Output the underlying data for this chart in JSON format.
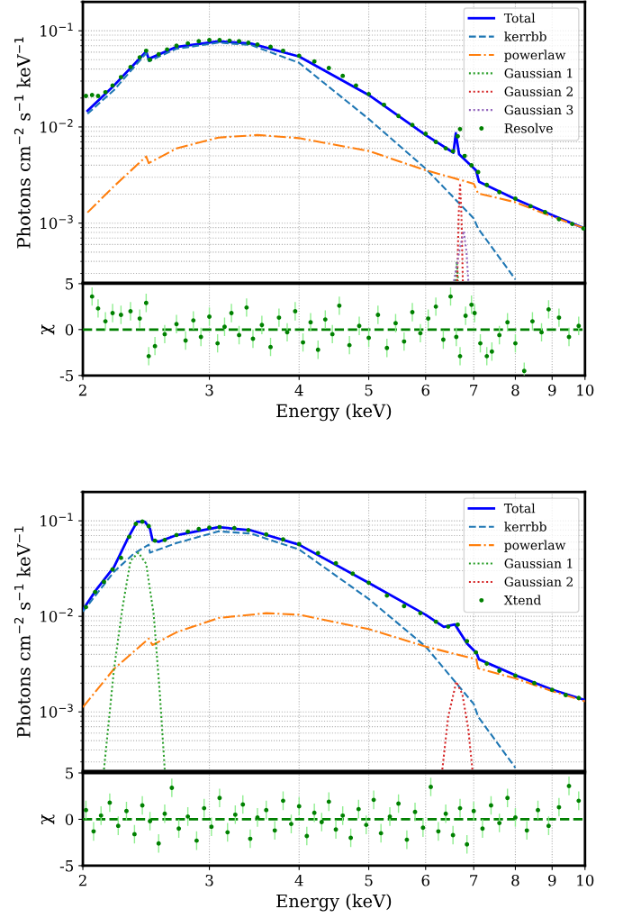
{
  "chart_data": [
    {
      "type": "line",
      "ylabel": "Photons cm$^{−2}$ s$^{−1}$ keV$^{−1}$",
      "log": "xy",
      "grid": true,
      "legend": "top right",
      "tick_labels": "y",
      "xlim": [
        2,
        10
      ],
      "ylim": [
        0.00024,
        0.2
      ],
      "yticks": [
        {
          "value": 0.001,
          "label": "10$^{−3}$"
        },
        {
          "value": 0.01,
          "label": "10$^{−2}$"
        },
        {
          "value": 0.1,
          "label": "10$^{−1}$"
        }
      ],
      "series": [
        {
          "name": "Total",
          "line_style": "solid",
          "color": "#0000ff",
          "x": [
            2.03,
            2.21,
            2.45,
            2.47,
            2.7,
            3.09,
            3.43,
            4,
            5,
            6,
            6.56,
            6.61,
            6.68,
            7.05,
            7.12,
            8,
            9,
            10
          ],
          "values": [
            0.0147,
            0.027,
            0.0607,
            0.051,
            0.068,
            0.0776,
            0.0735,
            0.054,
            0.0215,
            0.00825,
            0.0054,
            0.0086,
            0.0052,
            0.00355,
            0.0027,
            0.00178,
            0.00121,
            0.00088
          ]
        },
        {
          "name": "kerrbb",
          "line_style": "dashed",
          "color": "#1f77b4",
          "x": [
            2.03,
            2.21,
            2.45,
            2.47,
            2.7,
            3.09,
            3.43,
            4,
            5,
            6,
            7,
            7.1,
            8
          ],
          "values": [
            0.0137,
            0.0242,
            0.0585,
            0.0482,
            0.065,
            0.0753,
            0.071,
            0.0464,
            0.0121,
            0.00369,
            0.00112,
            0.00088,
            0.00026
          ]
        },
        {
          "name": "powerlaw",
          "line_style": "dashdot",
          "color": "#ff7f0e",
          "x": [
            2.03,
            2.21,
            2.45,
            2.47,
            2.7,
            3.09,
            3.5,
            4,
            5,
            6,
            7,
            7.1,
            8,
            9,
            10
          ],
          "values": [
            0.00129,
            0.00242,
            0.00493,
            0.0042,
            0.00598,
            0.00776,
            0.00825,
            0.00765,
            0.00562,
            0.00355,
            0.00257,
            0.00204,
            0.00165,
            0.00117,
            0.00088
          ]
        },
        {
          "name": "Gaussian 1",
          "line_style": "dotted",
          "color": "#2ca02c",
          "x": [
            6.6,
            6.63,
            6.66
          ],
          "values": [
            0.00025,
            0.0004,
            0.00025
          ]
        },
        {
          "name": "Gaussian 2",
          "line_style": "dotted",
          "color": "#d62728",
          "x": [
            6.64,
            6.67,
            6.7,
            6.73,
            6.76
          ],
          "values": [
            0.00025,
            0.0012,
            0.0026,
            0.0012,
            0.00025
          ]
        },
        {
          "name": "Gaussian 3",
          "line_style": "dotted",
          "color": "#9467bd",
          "x": [
            6.57,
            6.68,
            6.78,
            6.84,
            6.88
          ],
          "values": [
            0.00025,
            0.0005,
            0.00083,
            0.0005,
            0.00025
          ]
        },
        {
          "name": "Resolve",
          "type": "scatter",
          "marker": "circle",
          "color": "#008000",
          "x": [
            2.02,
            2.06,
            2.1,
            2.15,
            2.2,
            2.26,
            2.33,
            2.4,
            2.45,
            2.48,
            2.55,
            2.62,
            2.7,
            2.8,
            2.9,
            3.0,
            3.1,
            3.2,
            3.3,
            3.4,
            3.5,
            3.65,
            3.8,
            4.0,
            4.2,
            4.4,
            4.6,
            4.8,
            5.0,
            5.25,
            5.5,
            5.75,
            6.0,
            6.2,
            6.4,
            6.55,
            6.65,
            6.7,
            6.8,
            6.95,
            7.1,
            7.3,
            7.6,
            8.0,
            8.4,
            8.8,
            9.2,
            9.6,
            9.95
          ],
          "values": [
            0.021,
            0.0215,
            0.021,
            0.023,
            0.027,
            0.033,
            0.042,
            0.053,
            0.062,
            0.05,
            0.057,
            0.064,
            0.07,
            0.074,
            0.078,
            0.08,
            0.08,
            0.079,
            0.078,
            0.075,
            0.072,
            0.068,
            0.062,
            0.055,
            0.048,
            0.041,
            0.034,
            0.027,
            0.022,
            0.017,
            0.013,
            0.0105,
            0.0085,
            0.007,
            0.006,
            0.0056,
            0.008,
            0.0095,
            0.005,
            0.004,
            0.0034,
            0.0025,
            0.0021,
            0.0018,
            0.0015,
            0.0013,
            0.0011,
            0.00098,
            0.00088
          ]
        }
      ]
    },
    {
      "type": "scatter",
      "ylabel": "χ",
      "xlabel": "Energy (keV)",
      "log": "x",
      "grid": "x",
      "xlim": [
        2,
        10
      ],
      "xticks": [
        2,
        3,
        4,
        5,
        6,
        7,
        8,
        9,
        10
      ],
      "ylim": [
        -5,
        5
      ],
      "yticks": [
        -5,
        0,
        5
      ],
      "ref_lines": [
        {
          "axis": "y",
          "value": 0,
          "color": "#008000",
          "line_style": "dashed"
        }
      ],
      "series": [
        {
          "marker": "circle",
          "color": "#008000",
          "x": [
            2.06,
            2.1,
            2.15,
            2.2,
            2.26,
            2.33,
            2.4,
            2.45,
            2.47,
            2.52,
            2.6,
            2.7,
            2.78,
            2.85,
            2.92,
            3.0,
            3.08,
            3.15,
            3.22,
            3.3,
            3.38,
            3.45,
            3.55,
            3.65,
            3.75,
            3.85,
            3.95,
            4.05,
            4.15,
            4.25,
            4.35,
            4.45,
            4.55,
            4.7,
            4.85,
            5.0,
            5.15,
            5.3,
            5.45,
            5.6,
            5.75,
            5.9,
            6.05,
            6.2,
            6.35,
            6.5,
            6.62,
            6.7,
            6.82,
            6.95,
            7.02,
            7.15,
            7.3,
            7.42,
            7.6,
            7.8,
            8.0,
            8.23,
            8.45,
            8.7,
            8.9,
            9.2,
            9.5,
            9.8
          ],
          "values": [
            3.6,
            2.3,
            0.9,
            1.8,
            1.6,
            2.0,
            1.2,
            2.9,
            -2.9,
            -1.8,
            -0.5,
            0.6,
            -1.2,
            1.0,
            -0.8,
            1.4,
            -1.5,
            0.3,
            1.8,
            -0.6,
            2.4,
            -1.0,
            0.5,
            -1.9,
            1.3,
            -0.3,
            2.0,
            -1.4,
            0.8,
            -2.2,
            1.1,
            -0.5,
            2.6,
            -1.7,
            0.4,
            -0.9,
            1.6,
            -2.0,
            0.7,
            -1.3,
            1.9,
            -0.4,
            1.2,
            2.5,
            -1.1,
            3.6,
            -0.8,
            -2.9,
            1.5,
            2.7,
            1.8,
            -1.5,
            -2.9,
            -2.4,
            -0.6,
            0.8,
            -1.5,
            -4.5,
            0.9,
            -0.3,
            2.2,
            1.3,
            -0.8,
            0.4
          ],
          "errors": [
            1,
            1,
            1,
            1,
            1,
            1,
            1,
            1,
            1,
            1,
            1,
            1,
            1,
            1,
            1,
            1,
            1,
            1,
            1,
            1,
            1,
            1,
            1,
            1,
            1,
            1,
            1,
            1,
            1,
            1,
            1,
            1,
            1,
            1,
            1,
            1,
            1,
            1,
            1,
            1,
            1,
            1,
            1,
            1,
            1,
            1,
            1,
            1,
            1,
            1,
            1,
            1,
            1,
            1,
            1,
            1,
            1,
            [
              -5,
              -3.6
            ],
            1,
            1,
            1,
            1,
            1,
            1
          ]
        }
      ]
    },
    {
      "type": "line",
      "ylabel": "Photons cm$^{−2}$ s$^{−1}$ keV$^{−1}$",
      "log": "xy",
      "grid": true,
      "legend": "top right",
      "tick_labels": "y",
      "xlim": [
        2,
        10
      ],
      "ylim": [
        0.00024,
        0.2
      ],
      "yticks": [
        {
          "value": 0.001,
          "label": "10$^{−3}$"
        },
        {
          "value": 0.01,
          "label": "10$^{−2}$"
        },
        {
          "value": 0.1,
          "label": "10$^{−1}$"
        }
      ],
      "series": [
        {
          "name": "Total",
          "line_style": "solid",
          "color": "#0000ff",
          "x": [
            2.0,
            2.09,
            2.21,
            2.31,
            2.38,
            2.44,
            2.48,
            2.5,
            2.55,
            2.7,
            3.09,
            3.43,
            4,
            5,
            6,
            6.36,
            6.59,
            6.85,
            7.06,
            7.12,
            8,
            9,
            10
          ],
          "values": [
            0.0117,
            0.0192,
            0.0329,
            0.0656,
            0.0977,
            0.0977,
            0.0826,
            0.063,
            0.0603,
            0.0708,
            0.0858,
            0.0794,
            0.0562,
            0.0224,
            0.0104,
            0.00776,
            0.00825,
            0.0052,
            0.00414,
            0.00355,
            0.00242,
            0.00171,
            0.00133
          ]
        },
        {
          "name": "kerrbb",
          "line_style": "dashed",
          "color": "#1f77b4",
          "x": [
            2.0,
            2.21,
            2.35,
            2.47,
            2.48,
            2.7,
            3.09,
            3.43,
            4,
            5,
            6,
            7,
            7.1,
            8
          ],
          "values": [
            0.0112,
            0.0293,
            0.0447,
            0.0562,
            0.0464,
            0.0585,
            0.0776,
            0.0735,
            0.0501,
            0.0152,
            0.00483,
            0.00121,
            0.00089,
            0.00026
          ]
        },
        {
          "name": "powerlaw",
          "line_style": "dashdot",
          "color": "#ff7f0e",
          "x": [
            2.0,
            2.21,
            2.47,
            2.5,
            2.7,
            3.09,
            3.6,
            4,
            5,
            6,
            7.06,
            7.1,
            8,
            9,
            10
          ],
          "values": [
            0.00112,
            0.00282,
            0.00585,
            0.00501,
            0.00681,
            0.00962,
            0.0108,
            0.0104,
            0.00736,
            0.00483,
            0.00355,
            0.00286,
            0.00224,
            0.00165,
            0.00129
          ]
        },
        {
          "name": "Gaussian 1",
          "line_style": "dotted",
          "color": "#2ca02c",
          "x": [
            2.14,
            2.21,
            2.27,
            2.33,
            2.39,
            2.45,
            2.51,
            2.56,
            2.6
          ],
          "values": [
            0.00025,
            0.0028,
            0.0121,
            0.0383,
            0.0464,
            0.0355,
            0.0104,
            0.00153,
            0.00025
          ]
        },
        {
          "name": "Gaussian 2",
          "line_style": "dotted",
          "color": "#d62728",
          "x": [
            6.33,
            6.45,
            6.62,
            6.75,
            6.88,
            6.97
          ],
          "values": [
            0.00025,
            0.00089,
            0.00207,
            0.00153,
            0.00066,
            0.00025
          ]
        },
        {
          "name": "Xtend",
          "type": "scatter",
          "marker": "circle",
          "color": "#008000",
          "x": [
            2.02,
            2.08,
            2.14,
            2.2,
            2.26,
            2.32,
            2.37,
            2.42,
            2.47,
            2.52,
            2.6,
            2.7,
            2.8,
            2.9,
            3.0,
            3.1,
            3.25,
            3.4,
            3.6,
            3.8,
            4.0,
            4.25,
            4.5,
            4.75,
            5.0,
            5.3,
            5.6,
            5.9,
            6.2,
            6.45,
            6.65,
            6.85,
            7.05,
            7.3,
            7.6,
            8.0,
            8.5,
            9.0,
            9.4,
            9.8
          ],
          "values": [
            0.0125,
            0.018,
            0.023,
            0.031,
            0.041,
            0.068,
            0.093,
            0.098,
            0.088,
            0.062,
            0.063,
            0.071,
            0.077,
            0.082,
            0.085,
            0.086,
            0.084,
            0.08,
            0.072,
            0.064,
            0.057,
            0.046,
            0.036,
            0.028,
            0.0225,
            0.0165,
            0.0128,
            0.0108,
            0.0088,
            0.0078,
            0.0082,
            0.0055,
            0.0042,
            0.0032,
            0.0027,
            0.0024,
            0.002,
            0.0017,
            0.0015,
            0.0014
          ]
        }
      ]
    },
    {
      "type": "scatter",
      "ylabel": "χ",
      "xlabel": "Energy (keV)",
      "log": "x",
      "grid": "x",
      "xlim": [
        2,
        10
      ],
      "xticks": [
        2,
        3,
        4,
        5,
        6,
        7,
        8,
        9,
        10
      ],
      "ylim": [
        -5,
        5
      ],
      "yticks": [
        -5,
        0,
        5
      ],
      "ref_lines": [
        {
          "axis": "y",
          "value": 0,
          "color": "#008000",
          "line_style": "dashed"
        }
      ],
      "series": [
        {
          "marker": "circle",
          "color": "#008000",
          "x": [
            2.02,
            2.07,
            2.12,
            2.18,
            2.24,
            2.3,
            2.36,
            2.42,
            2.48,
            2.55,
            2.6,
            2.66,
            2.72,
            2.8,
            2.88,
            2.95,
            3.02,
            3.1,
            3.18,
            3.26,
            3.34,
            3.42,
            3.5,
            3.6,
            3.7,
            3.8,
            3.9,
            4.0,
            4.1,
            4.2,
            4.3,
            4.4,
            4.5,
            4.6,
            4.72,
            4.84,
            4.96,
            5.08,
            5.2,
            5.35,
            5.5,
            5.65,
            5.8,
            5.95,
            6.1,
            6.25,
            6.4,
            6.55,
            6.7,
            6.85,
            7.0,
            7.2,
            7.4,
            7.6,
            7.8,
            8.0,
            8.3,
            8.6,
            8.9,
            9.2,
            9.5,
            9.8
          ],
          "values": [
            1.0,
            -1.3,
            0.4,
            1.8,
            -0.7,
            0.9,
            -1.6,
            1.5,
            -0.2,
            -2.6,
            0.6,
            3.4,
            -1.0,
            0.3,
            -2.3,
            1.2,
            -0.8,
            2.3,
            -1.4,
            0.5,
            1.6,
            -2.1,
            0.2,
            1.0,
            -1.2,
            2.0,
            -0.5,
            1.4,
            -1.8,
            0.7,
            -0.3,
            1.9,
            -1.1,
            0.4,
            -2.0,
            1.1,
            -0.6,
            2.1,
            -1.5,
            0.3,
            1.7,
            -2.2,
            0.8,
            -0.9,
            3.5,
            -1.3,
            0.6,
            -1.7,
            1.2,
            -2.7,
            0.9,
            -1.0,
            1.5,
            -0.4,
            2.3,
            0.2,
            -1.2,
            1.0,
            -0.7,
            1.3,
            3.6,
            2.0
          ],
          "errors": [
            1,
            1,
            1,
            1,
            1,
            1,
            1,
            1,
            1,
            1,
            1,
            1,
            1,
            1,
            1,
            1,
            1,
            1,
            1,
            1,
            1,
            1,
            1,
            1,
            1,
            1,
            1,
            1,
            1,
            1,
            1,
            1,
            1,
            1,
            1,
            1,
            1,
            1,
            1,
            1,
            1,
            1,
            1,
            1,
            1,
            1,
            1,
            1,
            1,
            1,
            1,
            1,
            1,
            1,
            1,
            1,
            1,
            1,
            1,
            1,
            1,
            1
          ]
        }
      ]
    }
  ]
}
